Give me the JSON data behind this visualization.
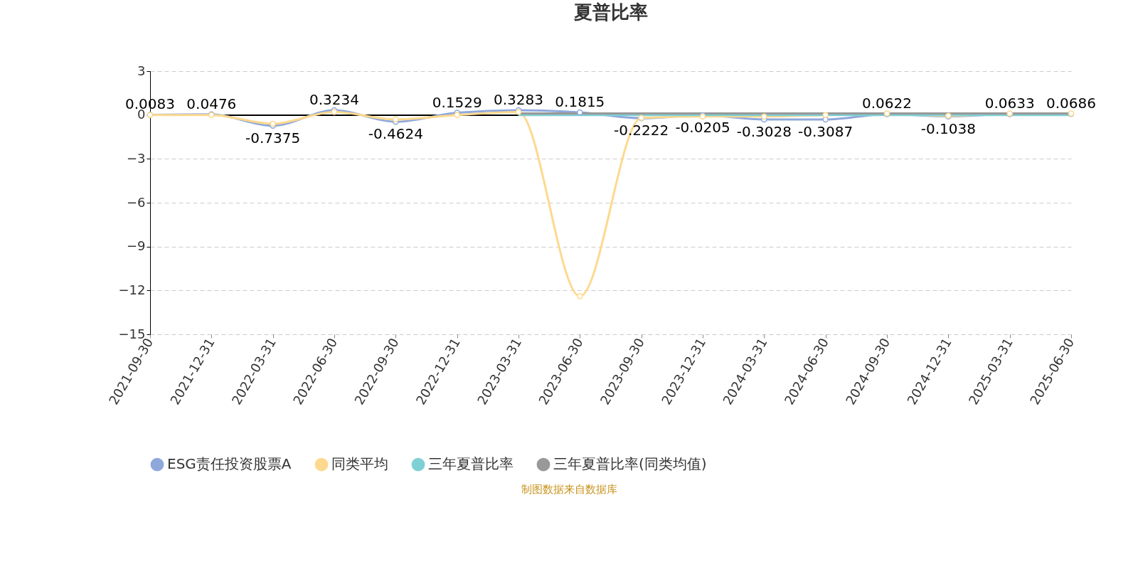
{
  "chart_data": {
    "type": "line",
    "title": "夏普比率",
    "categories": [
      "2021-09-30",
      "2021-12-31",
      "2022-03-31",
      "2022-06-30",
      "2022-09-30",
      "2022-12-31",
      "2023-03-31",
      "2023-06-30",
      "2023-09-30",
      "2023-12-31",
      "2024-03-31",
      "2024-06-30",
      "2024-09-30",
      "2024-12-31",
      "2025-03-31",
      "2025-06-30"
    ],
    "series": [
      {
        "name": "ESG责任投资股票A",
        "color": "#8fa8dc",
        "marker": "circle",
        "values": [
          0.0083,
          0.0476,
          -0.7375,
          0.3234,
          -0.4624,
          0.1529,
          0.3283,
          0.1815,
          -0.2222,
          -0.0205,
          -0.3028,
          -0.3087,
          0.0622,
          -0.1038,
          0.0633,
          0.0686
        ],
        "value_labels": [
          "0.0083",
          "0.0476",
          "-0.7375",
          "0.3234",
          "-0.4624",
          "0.1529",
          "0.3283",
          "0.1815",
          "-0.2222",
          "-0.0205",
          "-0.3028",
          "-0.3087",
          "0.0622",
          "-0.1038",
          "0.0633",
          "0.0686"
        ]
      },
      {
        "name": "同类平均",
        "color": "#fdd98f",
        "marker": "circle",
        "values": [
          0.0,
          0.0,
          -0.6,
          0.2,
          -0.3,
          0.0,
          0.2,
          -12.4,
          -0.2,
          -0.1,
          -0.1,
          0.0,
          0.1,
          -0.05,
          0.1,
          0.1
        ]
      },
      {
        "name": "三年夏普比率",
        "color": "#7fd0d4",
        "marker": "none",
        "values": [
          null,
          null,
          null,
          null,
          null,
          null,
          0.0,
          0.0,
          0.0,
          0.0,
          0.0,
          0.0,
          0.0,
          0.0,
          0.0,
          0.0
        ]
      },
      {
        "name": "三年夏普比率(同类均值)",
        "color": "#999999",
        "marker": "none",
        "values": [
          null,
          null,
          null,
          null,
          null,
          null,
          0.1,
          0.1,
          0.1,
          0.1,
          0.1,
          0.1,
          0.1,
          0.1,
          0.1,
          0.1
        ]
      }
    ],
    "ylim": [
      -15,
      3
    ],
    "yticks": [
      -15,
      -12,
      -9,
      -6,
      -3,
      0,
      3
    ],
    "grid": "y",
    "legend": "bottom",
    "annotations": [
      "制图数据来自数据库"
    ]
  }
}
